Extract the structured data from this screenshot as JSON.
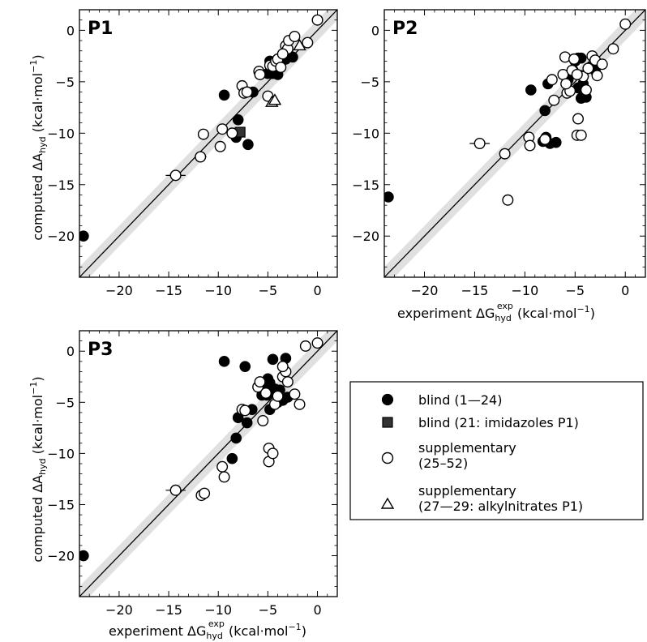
{
  "figure": {
    "ylabel": "computed ΔA",
    "ylabel_sub": "hyd",
    "ylabel_unit": " (kcal·mol",
    "ylabel_sup": "−1",
    "ylabel_close": ")",
    "xlabel": "experiment ΔG",
    "xlabel_sub": "hyd",
    "xlabel_sup": "exp",
    "xlabel_unit": " (kcal·mol",
    "xlabel_unit_sup": "−1",
    "xlabel_close": ")"
  },
  "legend": {
    "entries": [
      {
        "marker": "filled-circle",
        "lines": [
          "blind (1—24)"
        ]
      },
      {
        "marker": "filled-square",
        "lines": [
          "blind (21: imidazoles P1)"
        ]
      },
      {
        "marker": "open-circle",
        "lines": [
          "supplementary",
          "(25–52)"
        ]
      },
      {
        "marker": "open-triangle",
        "lines": [
          "supplementary",
          "(27—29: alkylnitrates P1)"
        ]
      }
    ]
  },
  "colors": {
    "filled": "#000000",
    "square": "#333333",
    "open": "#ffffff",
    "band": "#e0e0e0"
  },
  "chart_data": [
    {
      "type": "scatter",
      "title": "P1",
      "xlim": [
        -24,
        2
      ],
      "ylim": [
        -24,
        2
      ],
      "xticks": [
        -20,
        -15,
        -10,
        -5,
        0
      ],
      "yticks": [
        0,
        -5,
        -10,
        -15,
        -20
      ],
      "show_xtick_labels": true,
      "series": [
        {
          "marker": "filled-circle",
          "points": [
            [
              -23.6,
              -20.0
            ],
            [
              -9.4,
              -6.3
            ],
            [
              -8.0,
              -8.7
            ],
            [
              -8.2,
              -10.4
            ],
            [
              -7.0,
              -11.1
            ],
            [
              -6.5,
              -6.0
            ],
            [
              -5.0,
              -4.2
            ],
            [
              -4.5,
              -4.2
            ],
            [
              -4.0,
              -4.3
            ],
            [
              -3.8,
              -3.2
            ],
            [
              -3.5,
              -2.5
            ],
            [
              -3.2,
              -2.8
            ],
            [
              -3.0,
              -2.0
            ],
            [
              -2.5,
              -2.6
            ],
            [
              -4.8,
              -3.0
            ],
            [
              -3.6,
              -3.0
            ]
          ]
        },
        {
          "marker": "filled-square",
          "points": [
            [
              -7.8,
              -9.9
            ]
          ]
        },
        {
          "marker": "open-circle",
          "points": [
            [
              -14.3,
              -14.1
            ],
            [
              -11.8,
              -12.3
            ],
            [
              -11.5,
              -10.1
            ],
            [
              -9.8,
              -11.3
            ],
            [
              -9.6,
              -9.6
            ],
            [
              -8.6,
              -10.0
            ],
            [
              -7.6,
              -5.4
            ],
            [
              -7.4,
              -6.1
            ],
            [
              -7.1,
              -6.0
            ],
            [
              -5.9,
              -4.0
            ],
            [
              -5.8,
              -4.3
            ],
            [
              -5.0,
              -6.4
            ],
            [
              -4.8,
              -3.4
            ],
            [
              -4.5,
              -3.5
            ],
            [
              -4.2,
              -3.0
            ],
            [
              -4.0,
              -2.8
            ],
            [
              -3.7,
              -3.6
            ],
            [
              -3.2,
              -1.5
            ],
            [
              -3.0,
              -1.8
            ],
            [
              -2.9,
              -1.0
            ],
            [
              -2.3,
              -0.6
            ],
            [
              -1.0,
              -1.2
            ],
            [
              0.0,
              1.0
            ],
            [
              -3.5,
              -2.3
            ]
          ]
        },
        {
          "marker": "open-triangle",
          "points": [
            [
              -4.6,
              -7.0
            ],
            [
              -4.3,
              -6.8
            ],
            [
              -1.8,
              -1.5
            ]
          ]
        }
      ],
      "xerrbars": [
        [
          -14.3,
          -14.1,
          1.0
        ],
        [
          -11.8,
          -12.3,
          0.6
        ],
        [
          -8.0,
          -8.7,
          0.4
        ],
        [
          -8.2,
          -10.4,
          0.4
        ],
        [
          -7.8,
          -9.9,
          0.3
        ],
        [
          -4.0,
          -4.3,
          0.3
        ]
      ]
    },
    {
      "type": "scatter",
      "title": "P2",
      "xlim": [
        -24,
        2
      ],
      "ylim": [
        -24,
        2
      ],
      "xticks": [
        -20,
        -15,
        -10,
        -5,
        0
      ],
      "yticks": [
        0,
        -5,
        -10,
        -15,
        -20
      ],
      "show_xtick_labels": true,
      "series": [
        {
          "marker": "filled-circle",
          "points": [
            [
              -23.6,
              -16.2
            ],
            [
              -9.4,
              -5.8
            ],
            [
              -7.7,
              -5.2
            ],
            [
              -8.0,
              -7.8
            ],
            [
              -7.9,
              -10.4
            ],
            [
              -8.2,
              -10.8
            ],
            [
              -6.9,
              -10.9
            ],
            [
              -7.5,
              -11.0
            ],
            [
              -5.7,
              -4.8
            ],
            [
              -5.2,
              -3.9
            ],
            [
              -5.0,
              -3.0
            ],
            [
              -4.7,
              -2.7
            ],
            [
              -4.4,
              -2.7
            ],
            [
              -4.4,
              -4.4
            ],
            [
              -4.2,
              -5.2
            ],
            [
              -4.7,
              -5.6
            ],
            [
              -4.4,
              -6.6
            ],
            [
              -3.9,
              -6.5
            ],
            [
              -3.4,
              -3.5
            ],
            [
              -3.0,
              -3.9
            ]
          ]
        },
        {
          "marker": "open-circle",
          "points": [
            [
              -14.5,
              -11.0
            ],
            [
              -12.0,
              -12.0
            ],
            [
              -11.7,
              -16.5
            ],
            [
              -9.6,
              -10.4
            ],
            [
              -9.5,
              -11.2
            ],
            [
              -8.0,
              -10.6
            ],
            [
              -7.3,
              -4.8
            ],
            [
              -7.1,
              -6.8
            ],
            [
              -6.2,
              -4.3
            ],
            [
              -6.0,
              -2.6
            ],
            [
              -5.8,
              -6.1
            ],
            [
              -5.5,
              -5.9
            ],
            [
              -5.3,
              -3.9
            ],
            [
              -5.1,
              -2.8
            ],
            [
              -4.8,
              -10.2
            ],
            [
              -4.4,
              -10.2
            ],
            [
              -4.7,
              -8.6
            ],
            [
              -4.2,
              -4.5
            ],
            [
              -3.9,
              -5.8
            ],
            [
              -3.7,
              -3.7
            ],
            [
              -3.3,
              -2.5
            ],
            [
              -3.0,
              -2.9
            ],
            [
              -2.8,
              -4.4
            ],
            [
              -2.3,
              -3.3
            ],
            [
              -1.2,
              -1.8
            ],
            [
              0.0,
              0.6
            ],
            [
              -5.9,
              -5.2
            ],
            [
              -4.8,
              -4.3
            ]
          ]
        }
      ],
      "xerrbars": [
        [
          -14.5,
          -11.0,
          1.0
        ],
        [
          -8.0,
          -7.8,
          0.4
        ],
        [
          -4.4,
          -6.6,
          0.3
        ],
        [
          -3.9,
          -6.5,
          0.3
        ]
      ]
    },
    {
      "type": "scatter",
      "title": "P3",
      "xlim": [
        -24,
        2
      ],
      "ylim": [
        -24,
        2
      ],
      "xticks": [
        -20,
        -15,
        -10,
        -5,
        0
      ],
      "yticks": [
        0,
        -5,
        -10,
        -15,
        -20
      ],
      "show_xtick_labels": true,
      "series": [
        {
          "marker": "filled-circle",
          "points": [
            [
              -23.6,
              -20.0
            ],
            [
              -9.4,
              -1.0
            ],
            [
              -7.3,
              -1.5
            ],
            [
              -8.0,
              -6.5
            ],
            [
              -8.2,
              -8.5
            ],
            [
              -8.6,
              -10.5
            ],
            [
              -6.6,
              -5.7
            ],
            [
              -7.1,
              -7.0
            ],
            [
              -5.6,
              -4.3
            ],
            [
              -5.2,
              -3.5
            ],
            [
              -5.0,
              -2.7
            ],
            [
              -4.8,
              -3.1
            ],
            [
              -4.5,
              -0.8
            ],
            [
              -4.2,
              -4.1
            ],
            [
              -4.0,
              -5.0
            ],
            [
              -4.8,
              -5.7
            ],
            [
              -3.5,
              -4.8
            ],
            [
              -3.8,
              -3.8
            ],
            [
              -3.2,
              -0.7
            ],
            [
              -3.0,
              -4.5
            ],
            [
              -4.3,
              -3.7
            ],
            [
              -5.1,
              -4.3
            ]
          ]
        },
        {
          "marker": "open-circle",
          "points": [
            [
              -14.3,
              -13.6
            ],
            [
              -11.7,
              -14.1
            ],
            [
              -11.4,
              -13.9
            ],
            [
              -9.6,
              -11.3
            ],
            [
              -9.4,
              -12.3
            ],
            [
              -7.6,
              -5.7
            ],
            [
              -7.3,
              -5.8
            ],
            [
              -6.0,
              -3.5
            ],
            [
              -5.8,
              -3.0
            ],
            [
              -5.5,
              -6.8
            ],
            [
              -5.2,
              -4.1
            ],
            [
              -4.9,
              -9.5
            ],
            [
              -4.9,
              -10.8
            ],
            [
              -4.5,
              -10.0
            ],
            [
              -4.3,
              -5.2
            ],
            [
              -4.0,
              -4.4
            ],
            [
              -3.5,
              -2.5
            ],
            [
              -3.2,
              -2.0
            ],
            [
              -3.0,
              -3.0
            ],
            [
              -2.3,
              -4.2
            ],
            [
              -1.8,
              -5.2
            ],
            [
              -1.2,
              0.5
            ],
            [
              0.0,
              0.8
            ],
            [
              -3.5,
              -1.5
            ]
          ]
        }
      ],
      "xerrbars": [
        [
          -14.3,
          -13.6,
          1.0
        ],
        [
          -8.6,
          -10.5,
          0.4
        ],
        [
          -8.0,
          -6.5,
          0.3
        ]
      ]
    }
  ]
}
